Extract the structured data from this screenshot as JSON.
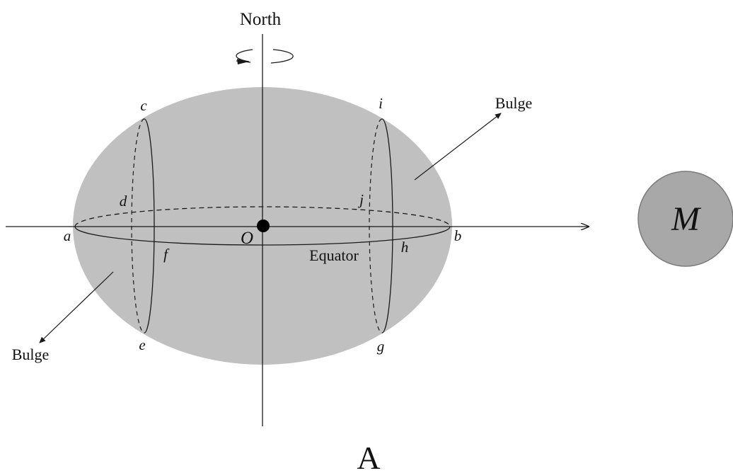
{
  "labels": {
    "north": "North",
    "bulge_right": "Bulge",
    "bulge_left": "Bulge",
    "equator": "Equator",
    "center": "O",
    "a": "a",
    "b": "b",
    "c": "c",
    "d": "d",
    "e": "e",
    "f": "f",
    "g": "g",
    "h": "h",
    "i": "i",
    "j": "j",
    "moon": "M",
    "caption": "A"
  },
  "colors": {
    "body_fill": "#c0c0c0",
    "moon_fill": "#a8a8a8",
    "moon_stroke": "#7a7a7a",
    "line": "#1a1a1a"
  },
  "icons": {
    "rotation": "rotation-arrow-icon"
  }
}
